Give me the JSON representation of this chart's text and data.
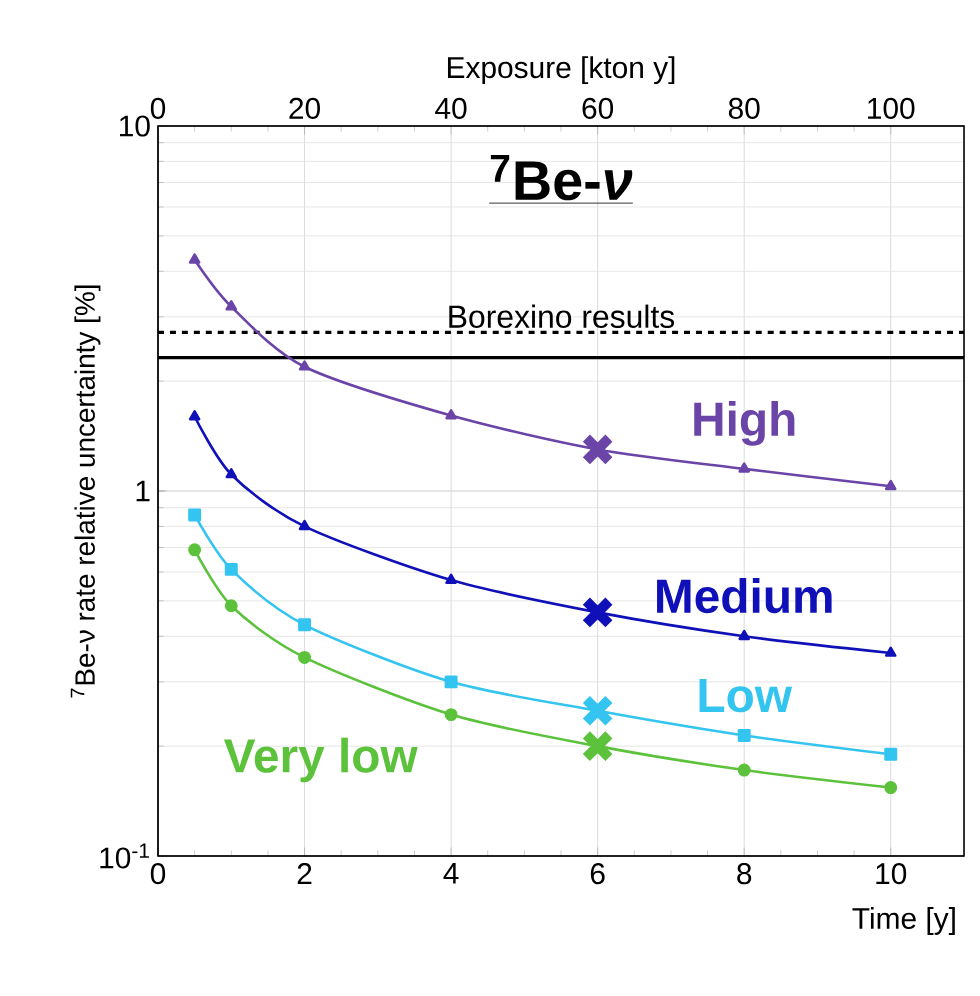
{
  "chart_data": {
    "type": "line",
    "title": "$^{7}$Be-*ν*",
    "xlabel": "Time [y]",
    "ylabel": "$^{7}$Be-ν rate relative uncertainty [%]",
    "x2label": "Exposure [kton y]",
    "x": [
      0.5,
      1,
      2,
      4,
      6,
      8,
      10
    ],
    "series": [
      {
        "name": "High",
        "color": "#6b44a8",
        "marker": "triangle",
        "values": [
          4.3,
          3.2,
          2.19,
          1.61,
          1.3,
          1.15,
          1.03
        ]
      },
      {
        "name": "Medium",
        "color": "#1010b8",
        "marker": "triangle",
        "values": [
          1.6,
          1.11,
          0.8,
          0.57,
          0.465,
          0.4,
          0.36
        ]
      },
      {
        "name": "Low",
        "color": "#33c4f0",
        "marker": "square",
        "values": [
          0.86,
          0.61,
          0.43,
          0.3,
          0.25,
          0.214,
          0.19
        ]
      },
      {
        "name": "Very low",
        "color": "#5cc23c",
        "marker": "circle",
        "values": [
          0.69,
          0.485,
          0.35,
          0.244,
          0.2,
          0.172,
          0.154
        ]
      },
      {
        "type": "scatter",
        "color": "#6b44a8",
        "marker": "cross",
        "values": [
          null,
          null,
          null,
          null,
          1.3,
          null,
          null
        ]
      },
      {
        "type": "scatter",
        "color": "#1010b8",
        "marker": "cross",
        "values": [
          null,
          null,
          null,
          null,
          0.465,
          null,
          null
        ]
      },
      {
        "type": "scatter",
        "color": "#33c4f0",
        "marker": "cross",
        "values": [
          null,
          null,
          null,
          null,
          0.25,
          null,
          null
        ]
      },
      {
        "type": "scatter",
        "color": "#5cc23c",
        "marker": "cross",
        "values": [
          null,
          null,
          null,
          null,
          0.2,
          null,
          null
        ]
      }
    ],
    "ref_lines": [
      {
        "axis": "y",
        "value": 2.72,
        "label": "Borexino results",
        "color": "#000000",
        "line_style": "dashed"
      },
      {
        "axis": "y",
        "value": 2.32,
        "color": "#000000",
        "line_style": "solid"
      }
    ],
    "xlim": [
      0,
      11
    ],
    "xticks": [
      0,
      2,
      4,
      6,
      8,
      10
    ],
    "x2lim": [
      0,
      110
    ],
    "x2ticks": [
      0,
      20,
      40,
      60,
      80,
      100
    ],
    "ylim": [
      0.1,
      10
    ],
    "yticks": [
      {
        "value": 0.1,
        "label": "10$^{-1}$"
      },
      1,
      10
    ],
    "log": "y",
    "grid": true
  }
}
